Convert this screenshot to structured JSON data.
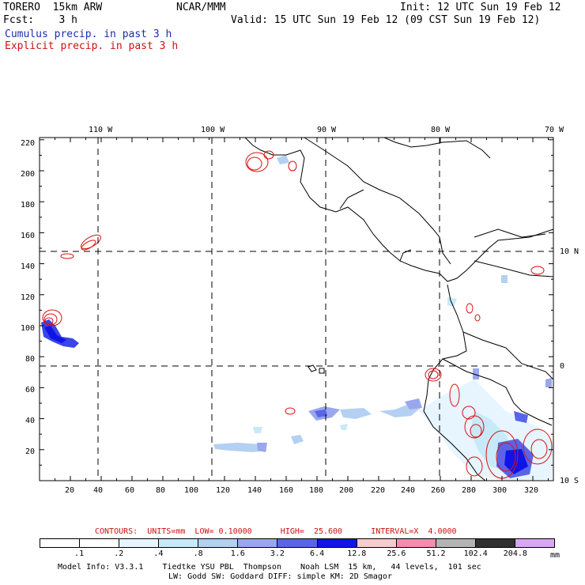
{
  "header": {
    "model": "TORERO  15km ARW",
    "org": "NCAR/MMM",
    "init": "Init: 12 UTC Sun 19 Feb 12",
    "fcst": "Fcst:    3 h",
    "valid": "Valid: 15 UTC Sun 19 Feb 12 (09 CST Sun 19 Feb 12)",
    "cumulus": "Cumulus precip. in past 3 h",
    "explicit": "Explicit precip. in past 3 h"
  },
  "axes": {
    "top_lon": [
      "110 W",
      "100 W",
      "90 W",
      "80 W",
      "70 W"
    ],
    "right_lat": [
      "10 N",
      "0",
      "10 S"
    ],
    "left_y": [
      "220",
      "200",
      "180",
      "160",
      "140",
      "120",
      "100",
      "80",
      "60",
      "40",
      "20"
    ],
    "bottom_x": [
      "20",
      "40",
      "60",
      "80",
      "100",
      "120",
      "140",
      "160",
      "180",
      "200",
      "220",
      "240",
      "260",
      "280",
      "300",
      "320"
    ]
  },
  "contour_info": {
    "label": "CONTOURS:  UNITS=mm  LOW= 0.10000      HIGH=  25.600      INTERVAL=X  4.0000"
  },
  "legend": {
    "levels": [
      ".1",
      ".2",
      ".4",
      ".8",
      "1.6",
      "3.2",
      "6.4",
      "12.8",
      "25.6",
      "51.2",
      "102.4",
      "204.8"
    ],
    "unit": "mm",
    "colors": [
      "#ffffff",
      "#ffffff",
      "#e6f5ff",
      "#c7eaf8",
      "#b4d0f2",
      "#9aa6ee",
      "#5a64e8",
      "#1014e6",
      "#f8cccc",
      "#f48cb0",
      "#b4b4b4",
      "#303030",
      "#d8a6f2"
    ]
  },
  "footer": {
    "line1": "Model Info: V3.3.1    Tiedtke YSU PBL  Thompson    Noah LSM  15 km,   44 levels,  101 sec",
    "line2": "LW: Godd SW: Goddard DIFF: simple KM: 2D Smagor"
  }
}
